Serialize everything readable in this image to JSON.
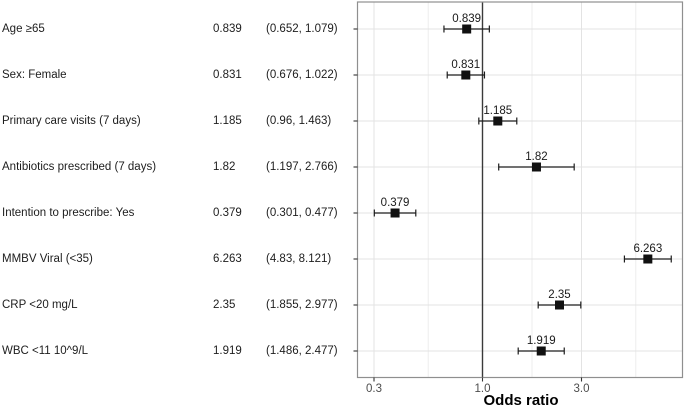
{
  "table": {
    "rows": [
      {
        "label": "Age ≥65",
        "or": "0.839",
        "ci": "(0.652, 1.079)"
      },
      {
        "label": "Sex: Female",
        "or": "0.831",
        "ci": "(0.676, 1.022)"
      },
      {
        "label": "Primary care visits (7 days)",
        "or": "1.185",
        "ci": "(0.96, 1.463)"
      },
      {
        "label": "Antibiotics prescribed (7 days)",
        "or": "1.82",
        "ci": "(1.197, 2.766)"
      },
      {
        "label": "Intention to prescribe: Yes",
        "or": "0.379",
        "ci": "(0.301, 0.477)"
      },
      {
        "label": "MMBV Viral (<35)",
        "or": "6.263",
        "ci": "(4.83, 8.121)"
      },
      {
        "label": "CRP <20 mg/L",
        "or": "2.35",
        "ci": "(1.855, 2.977)"
      },
      {
        "label": "WBC <11 10^9/L",
        "or": "1.919",
        "ci": "(1.486, 2.477)"
      }
    ]
  },
  "chart_data": {
    "type": "scatter",
    "subtype": "forest-plot",
    "title": "",
    "xlabel": "Odds ratio",
    "x_scale": "log10",
    "x_axis": {
      "ticks": [
        0.3,
        1.0,
        3.0
      ],
      "tick_labels": [
        "0.3",
        "1.0",
        "3.0"
      ],
      "minor_gridlines": [
        0.5477,
        1.7321,
        5.4772
      ],
      "range": [
        0.248,
        9.2
      ]
    },
    "reference_line_x": 1.0,
    "grid": true,
    "legend": false,
    "points": [
      {
        "name": "Age ≥65",
        "or": 0.839,
        "low": 0.652,
        "high": 1.079,
        "label": "0.839"
      },
      {
        "name": "Sex: Female",
        "or": 0.831,
        "low": 0.676,
        "high": 1.022,
        "label": "0.831"
      },
      {
        "name": "Primary care visits (7 days)",
        "or": 1.185,
        "low": 0.96,
        "high": 1.463,
        "label": "1.185"
      },
      {
        "name": "Antibiotics prescribed (7 days)",
        "or": 1.82,
        "low": 1.197,
        "high": 2.766,
        "label": "1.82"
      },
      {
        "name": "Intention to prescribe: Yes",
        "or": 0.379,
        "low": 0.301,
        "high": 0.477,
        "label": "0.379"
      },
      {
        "name": "MMBV Viral (<35)",
        "or": 6.263,
        "low": 4.83,
        "high": 8.121,
        "label": "6.263"
      },
      {
        "name": "CRP <20 mg/L",
        "or": 2.35,
        "low": 1.855,
        "high": 2.977,
        "label": "2.35"
      },
      {
        "name": "WBC <11 10^9/L",
        "or": 1.919,
        "low": 1.486,
        "high": 2.477,
        "label": "1.919"
      }
    ]
  },
  "colors": {
    "marker": "#111111",
    "ci_line": "#1c1c1c",
    "reference_line": "#3a3a3a",
    "grid_major": "#e3e3e3",
    "grid_minor": "#ededed",
    "panel_border": "#8f8f8f",
    "tick_mark": "#333333",
    "table_text": "#1d1d1d",
    "tick_text": "#4d4d4d"
  }
}
